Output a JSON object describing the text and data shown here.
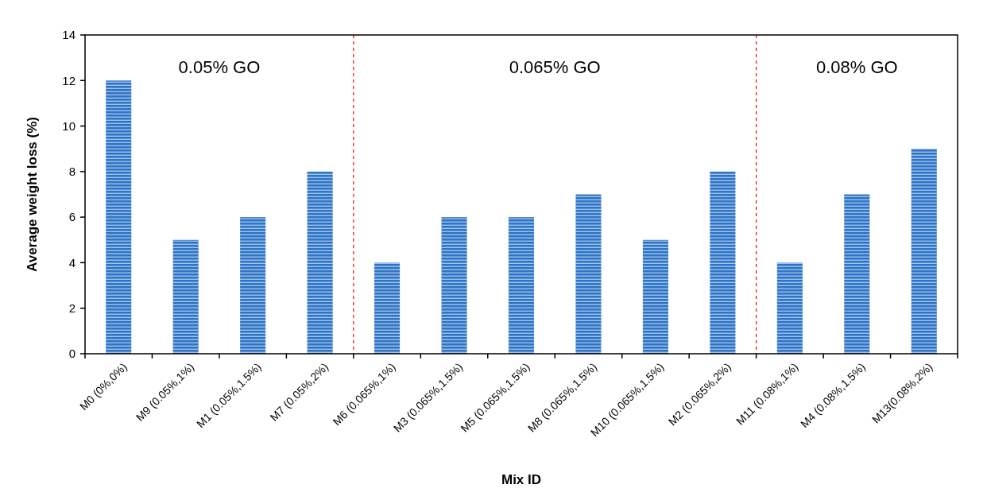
{
  "chart_data": {
    "type": "bar",
    "xlabel": "Mix ID",
    "ylabel": "Average weight loss (%)",
    "categories": [
      "M0 (0%,0%)",
      "M9 (0.05%,1%)",
      "M1 (0.05%,1.5%)",
      "M7 (0.05%,2%)",
      "M6 (0.065%,1%)",
      "M3 (0.065%,1.5%)",
      "M5 (0.065%,1.5%)",
      "M8 (0.065%,1.5%)",
      "M10 (0.065%,1.5%)",
      "M2 (0.065%,2%)",
      "M11 (0.08%,1%)",
      "M4 (0.08%,1.5%)",
      "M13(0.08%,2%)"
    ],
    "values": [
      12,
      5,
      6,
      8,
      4,
      6,
      6,
      7,
      5,
      8,
      4,
      7,
      9
    ],
    "color": "#2e75c8",
    "ylim": [
      0,
      14
    ],
    "yticks": [
      0,
      2,
      4,
      6,
      8,
      10,
      12,
      14
    ],
    "annotations": [
      "0.05% GO",
      "0.065% GO",
      "0.08% GO"
    ]
  }
}
